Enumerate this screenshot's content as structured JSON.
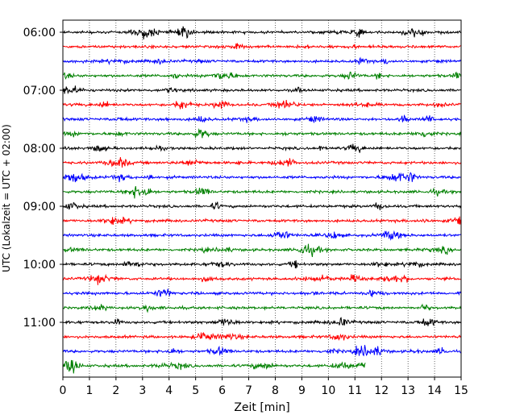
{
  "chart_data": {
    "type": "line",
    "title": "",
    "xlabel": "Zeit  [min]",
    "ylabel": "UTC (Lokalzeit = UTC + 02:00)",
    "xlim": [
      0,
      15
    ],
    "x_ticks": [
      0,
      1,
      2,
      3,
      4,
      5,
      6,
      7,
      8,
      9,
      10,
      11,
      12,
      13,
      14,
      15
    ],
    "y_tick_labels": [
      "06:00",
      "07:00",
      "08:00",
      "09:00",
      "10:00",
      "11:00"
    ],
    "trace_interval_minutes": 15,
    "first_trace_time": "06:00",
    "last_trace_time": "11:45",
    "last_trace_end_minute": 11.4,
    "grid": "vertical dotted",
    "colors": [
      "#000000",
      "#ff0000",
      "#0000ff",
      "#008000"
    ],
    "traces": [
      {
        "time": "06:00",
        "color": "#000000"
      },
      {
        "time": "06:15",
        "color": "#ff0000"
      },
      {
        "time": "06:30",
        "color": "#0000ff"
      },
      {
        "time": "06:45",
        "color": "#008000"
      },
      {
        "time": "07:00",
        "color": "#000000"
      },
      {
        "time": "07:15",
        "color": "#ff0000"
      },
      {
        "time": "07:30",
        "color": "#0000ff"
      },
      {
        "time": "07:45",
        "color": "#008000"
      },
      {
        "time": "08:00",
        "color": "#000000"
      },
      {
        "time": "08:15",
        "color": "#ff0000"
      },
      {
        "time": "08:30",
        "color": "#0000ff"
      },
      {
        "time": "08:45",
        "color": "#008000"
      },
      {
        "time": "09:00",
        "color": "#000000"
      },
      {
        "time": "09:15",
        "color": "#ff0000"
      },
      {
        "time": "09:30",
        "color": "#0000ff"
      },
      {
        "time": "09:45",
        "color": "#008000"
      },
      {
        "time": "10:00",
        "color": "#000000"
      },
      {
        "time": "10:15",
        "color": "#ff0000"
      },
      {
        "time": "10:30",
        "color": "#0000ff"
      },
      {
        "time": "10:45",
        "color": "#008000"
      },
      {
        "time": "11:00",
        "color": "#000000"
      },
      {
        "time": "11:15",
        "color": "#ff0000"
      },
      {
        "time": "11:30",
        "color": "#0000ff"
      },
      {
        "time": "11:45",
        "color": "#008000"
      }
    ]
  }
}
